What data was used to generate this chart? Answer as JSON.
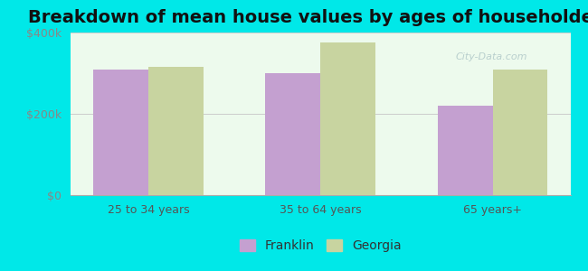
{
  "title": "Breakdown of mean house values by ages of householders",
  "categories": [
    "25 to 34 years",
    "35 to 64 years",
    "65 years+"
  ],
  "franklin_values": [
    310000,
    300000,
    220000
  ],
  "georgia_values": [
    315000,
    375000,
    310000
  ],
  "ylim": [
    0,
    400000
  ],
  "yticks": [
    0,
    200000,
    400000
  ],
  "ytick_labels": [
    "$0",
    "$200k",
    "$400k"
  ],
  "franklin_color": "#c4a0d0",
  "georgia_color": "#c8d4a0",
  "background_color": "#00e8e8",
  "plot_bg_color": "#edfaed",
  "title_fontsize": 14,
  "legend_labels": [
    "Franklin",
    "Georgia"
  ],
  "bar_width": 0.32
}
